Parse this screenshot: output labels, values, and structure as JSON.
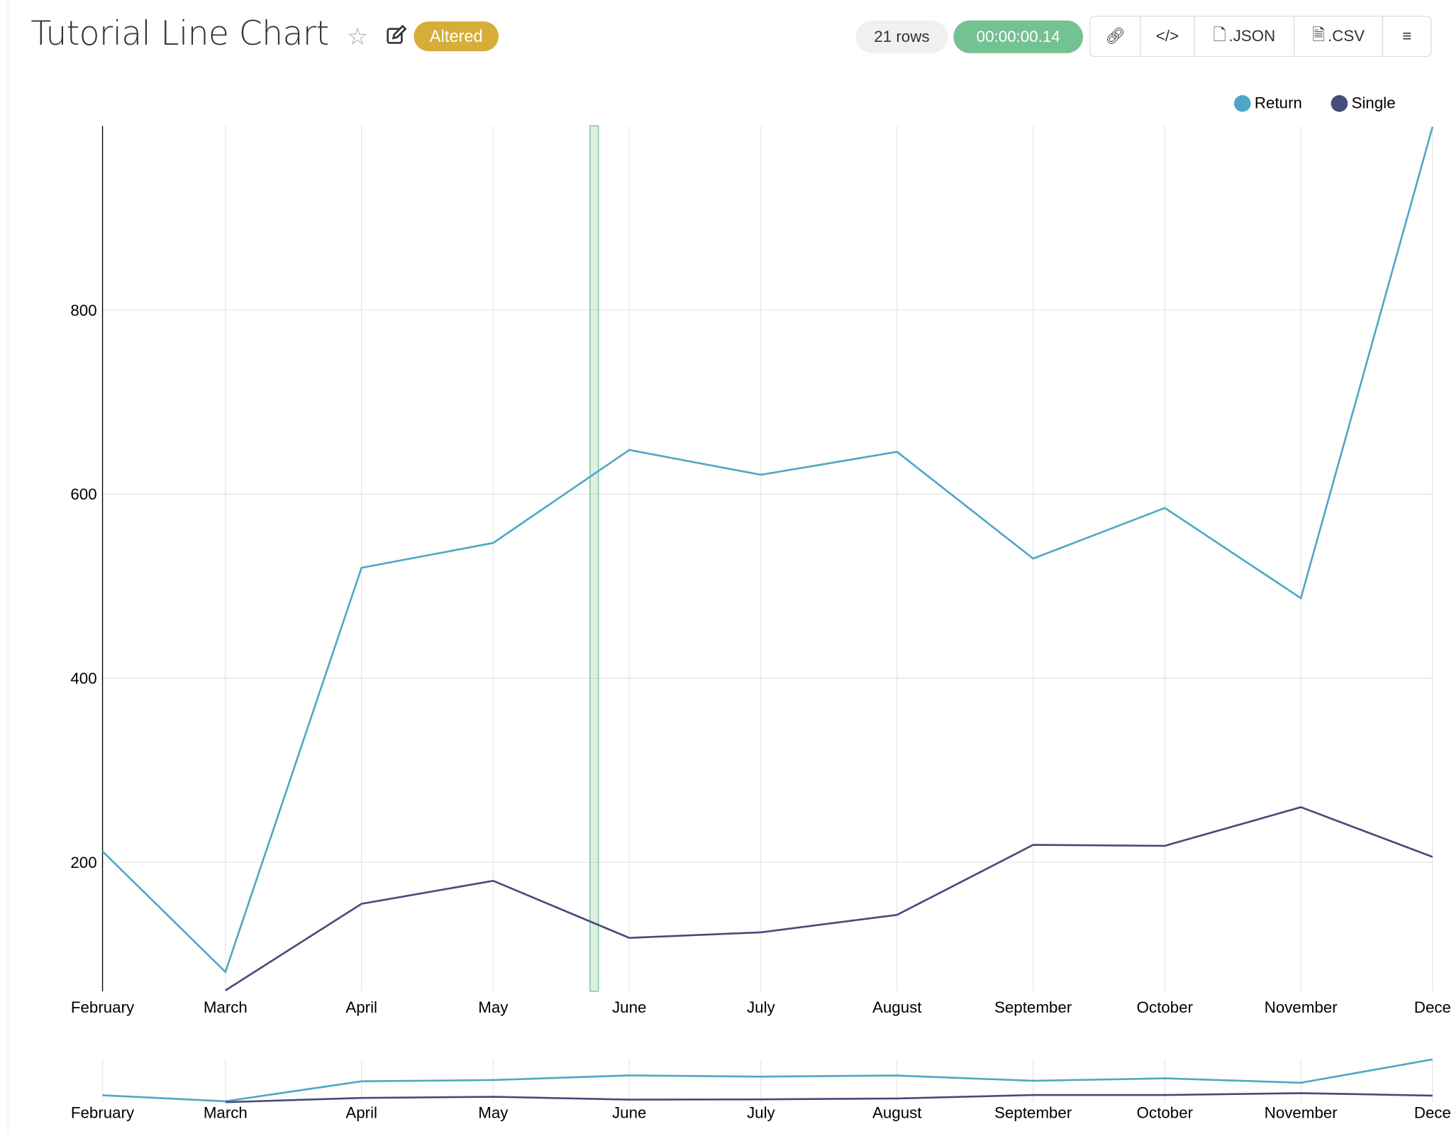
{
  "header": {
    "title": "Tutorial Line Chart",
    "status_badge": "Altered",
    "row_count": "21 rows",
    "query_time": "00:00:00.14",
    "buttons": {
      "link_icon": "link-icon",
      "embed_icon": "code-icon",
      "json": ".JSON",
      "csv": ".CSV",
      "menu_icon": "hamburger-icon"
    }
  },
  "colors": {
    "return": "#4fa7c6",
    "single": "#454c7a",
    "badge": "#d5ad38",
    "time": "#74c191"
  },
  "chart_data": {
    "type": "line",
    "title": "",
    "xlabel": "",
    "ylabel": "",
    "categories": [
      "February",
      "March",
      "April",
      "May",
      "June",
      "July",
      "August",
      "September",
      "October",
      "November",
      "Dece"
    ],
    "yticks": [
      200,
      400,
      600,
      800
    ],
    "ylim": [
      60,
      1000
    ],
    "grid": true,
    "legend": "top-right",
    "series": [
      {
        "name": "Return",
        "color": "#4fa7c6",
        "values": [
          212,
          81,
          520,
          547,
          648,
          621,
          646,
          530,
          585,
          487,
          999
        ]
      },
      {
        "name": "Single",
        "color": "#454c7a",
        "values": [
          null,
          61,
          155,
          180,
          118,
          124,
          143,
          219,
          218,
          260,
          206
        ]
      }
    ]
  }
}
